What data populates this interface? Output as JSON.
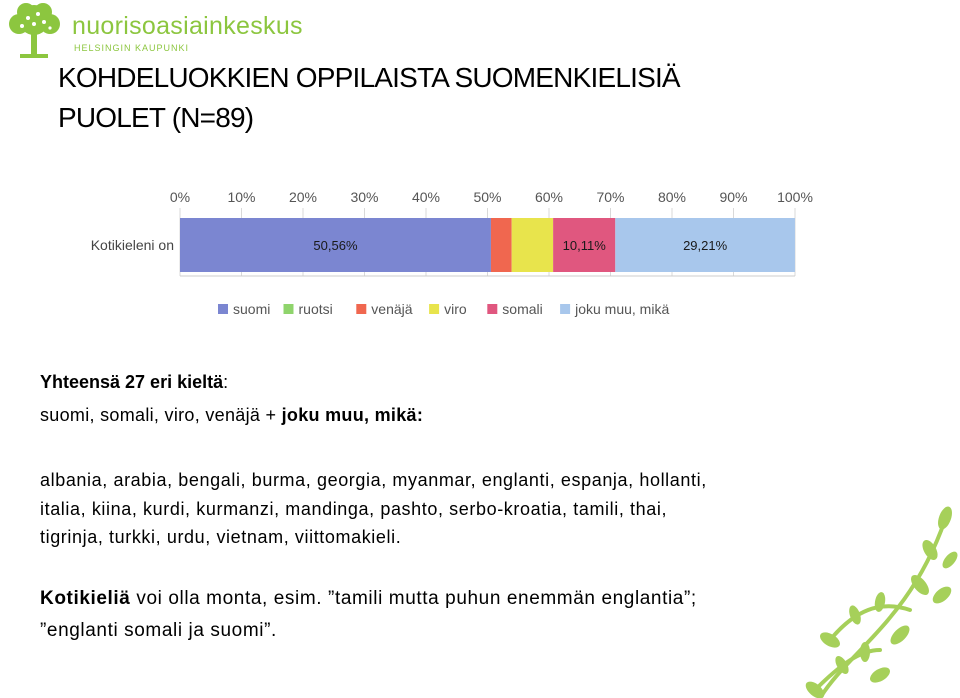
{
  "logo": {
    "name": "nuorisoasiainkeskus",
    "subtitle": "HELSINGIN KAUPUNKI",
    "tree_color": "#8cc63f"
  },
  "title": {
    "line1": "KOHDELUOKKIEN OPPILAISTA SUOMENKIELISIÄ",
    "line2": "PUOLET (N=89)"
  },
  "chart_data": {
    "type": "bar",
    "orientation": "horizontal",
    "stacked": true,
    "categories": [
      "Kotikieleni on"
    ],
    "x_tick_labels": [
      "0%",
      "10%",
      "20%",
      "30%",
      "40%",
      "50%",
      "60%",
      "70%",
      "80%",
      "90%",
      "100%"
    ],
    "xlim": [
      0,
      100
    ],
    "grid": true,
    "legend_placement": "bottom",
    "series": [
      {
        "name": "suomi",
        "values": [
          50.56
        ],
        "label": "50,56%",
        "color": "#7b86d1"
      },
      {
        "name": "ruotsi",
        "values": [
          0
        ],
        "label": "",
        "color": "#8fd46c"
      },
      {
        "name": "venäjä",
        "values": [
          3.37
        ],
        "label": "",
        "color": "#f0674f"
      },
      {
        "name": "viro",
        "values": [
          6.74
        ],
        "label": "",
        "color": "#e8e44c"
      },
      {
        "name": "somali",
        "values": [
          10.11
        ],
        "label": "10,11%",
        "color": "#e0577f"
      },
      {
        "name": "joku muu, mikä",
        "values": [
          29.21
        ],
        "label": "29,21%",
        "color": "#a8c7ec"
      }
    ]
  },
  "text": {
    "total_bold": "Yhteensä 27 eri kieltä",
    "total_colon": ":",
    "langs_plain": "suomi, somali, viro, venäjä + ",
    "langs_bold": "joku muu, mikä:",
    "list_line1": "albania, arabia, bengali, burma, georgia, myanmar, englanti, espanja, hollanti,",
    "list_line2": "italia, kiina, kurdi, kurmanzi, mandinga, pashto, serbo-kroatia, tamili, thai,",
    "list_line3": "tigrinja, turkki, urdu, vietnam, viittomakieli.",
    "note_bold": "Kotikieliä",
    "note_rest": " voi olla monta, esim. ”tamili mutta puhun enemmän englantia”;",
    "note_line2": "”englanti somali ja suomi”."
  },
  "decoration": {
    "plant_icon": "leaf-branch-icon",
    "color": "#a6d05a"
  }
}
